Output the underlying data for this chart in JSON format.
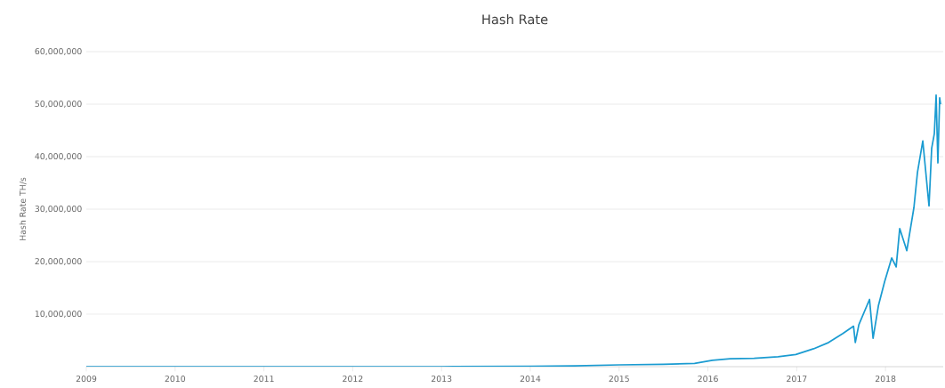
{
  "chart_data": {
    "type": "line",
    "title": "Hash Rate",
    "ylabel": "Hash Rate TH/s",
    "x": [
      2009,
      2010,
      2011,
      2012,
      2013,
      2014,
      2014.5,
      2015,
      2015.5,
      2015.85,
      2016.05,
      2016.25,
      2016.52,
      2016.79,
      2016.99,
      2017.19,
      2017.36,
      2017.52,
      2017.64,
      2017.66,
      2017.7,
      2017.82,
      2017.86,
      2017.92,
      2017.99,
      2018.07,
      2018.12,
      2018.16,
      2018.24,
      2018.32,
      2018.36,
      2018.42,
      2018.49,
      2018.52,
      2018.55,
      2018.57,
      2018.59,
      2018.61,
      2018.62
    ],
    "series": [
      {
        "color": "#1a9bd1",
        "values": [
          0,
          0,
          0,
          0,
          0,
          50000,
          150000,
          340000,
          450000,
          600000,
          1200000,
          1500000,
          1600000,
          1900000,
          2300000,
          3400000,
          4600000,
          6300000,
          7700000,
          4600000,
          8000000,
          12800000,
          5400000,
          11600000,
          16200000,
          20700000,
          19000000,
          26300000,
          22100000,
          30300000,
          37000000,
          43000000,
          30600000,
          41600000,
          44400000,
          51700000,
          38800000,
          51200000,
          50000000
        ]
      }
    ],
    "xlim": [
      2009,
      2018.65
    ],
    "xticks": [
      2009,
      2010,
      2011,
      2012,
      2013,
      2014,
      2015,
      2016,
      2017,
      2018
    ],
    "ylim": [
      0,
      60000000
    ],
    "yticks": [
      {
        "value": 10000000,
        "label": "10,000,000"
      },
      {
        "value": 20000000,
        "label": "20,000,000"
      },
      {
        "value": 30000000,
        "label": "30,000,000"
      },
      {
        "value": 40000000,
        "label": "40,000,000"
      },
      {
        "value": 50000000,
        "label": "50,000,000"
      },
      {
        "value": 60000000,
        "label": "60,000,000"
      }
    ],
    "grid": "y",
    "marker": "none",
    "line_style": "solid",
    "legend": false
  }
}
